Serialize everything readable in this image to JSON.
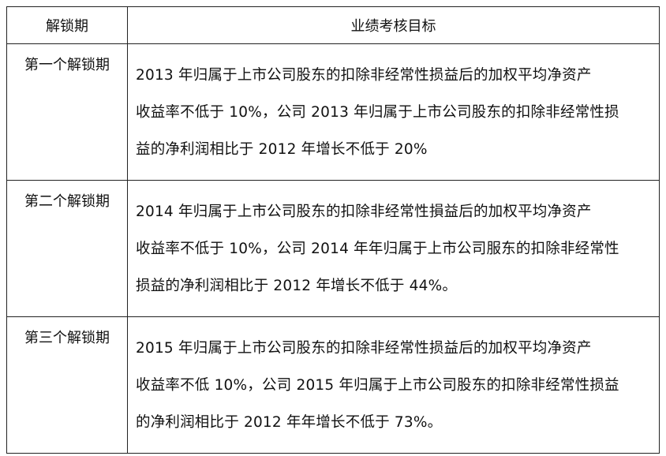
{
  "table": {
    "headers": [
      "解锁期",
      "业绩考核目标"
    ],
    "rows": [
      {
        "period": "第一个解锁期",
        "lines": [
          "2013 年归属于上市公司股东的扣除非经常性损益后的加权平均净资产",
          "收益率不低于 10%，公司 2013 年归属于上市公司股东的扣除非经常性损",
          "益的净利润相比于 2012 年增长不低于 20%"
        ]
      },
      {
        "period": "第二个解锁期",
        "lines": [
          "2014 年归属于上市公司股东的扣除非经常性損益后的加权平均净资产",
          "收益率不低于 10%，公司 2014 年年归属于上市公司服东的扣除非经常性",
          "损益的净利润相比于 2012 年增长不低于 44%。"
        ]
      },
      {
        "period": "第三个解锁期",
        "lines": [
          "2015 年归属于上市公司股东的扣除非经常性损益后的加权平均净资产",
          "收益率不低 10%，公司 2015 年归属于上市公司股东的扣除非经常性损益",
          "的净利润相比于 2012 年年增长不低于 73%。"
        ]
      }
    ]
  }
}
